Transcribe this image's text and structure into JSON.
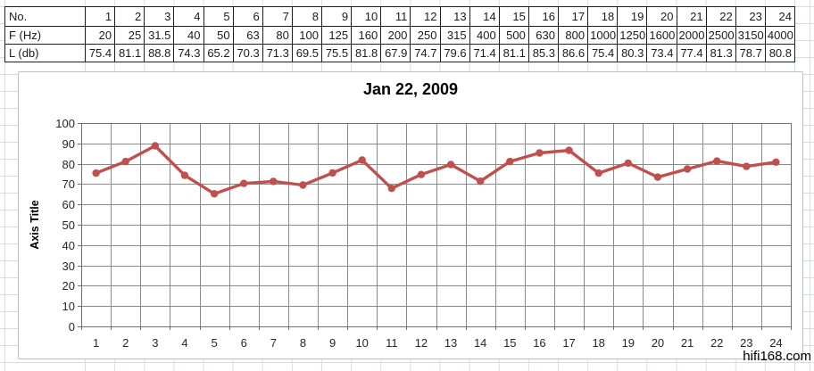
{
  "table": {
    "rows": [
      {
        "label": "No.",
        "values": [
          "1",
          "2",
          "3",
          "4",
          "5",
          "6",
          "7",
          "8",
          "9",
          "10",
          "11",
          "12",
          "13",
          "14",
          "15",
          "16",
          "17",
          "18",
          "19",
          "20",
          "21",
          "22",
          "23",
          "24"
        ]
      },
      {
        "label": "F (Hz)",
        "values": [
          "20",
          "25",
          "31.5",
          "40",
          "50",
          "63",
          "80",
          "100",
          "125",
          "160",
          "200",
          "250",
          "315",
          "400",
          "500",
          "630",
          "800",
          "1000",
          "1250",
          "1600",
          "2000",
          "2500",
          "3150",
          "4000"
        ]
      },
      {
        "label": "L (db)",
        "values": [
          "75.4",
          "81.1",
          "88.8",
          "74.3",
          "65.2",
          "70.3",
          "71.3",
          "69.5",
          "75.5",
          "81.8",
          "67.9",
          "74.7",
          "79.6",
          "71.4",
          "81.1",
          "85.3",
          "86.6",
          "75.4",
          "80.3",
          "73.4",
          "77.4",
          "81.3",
          "78.7",
          "80.8"
        ]
      }
    ]
  },
  "chart": {
    "title": "Jan 22, 2009"
  },
  "chart_data": {
    "type": "line",
    "title": "Jan 22, 2009",
    "xlabel": "",
    "ylabel": "Axis Title",
    "categories": [
      1,
      2,
      3,
      4,
      5,
      6,
      7,
      8,
      9,
      10,
      11,
      12,
      13,
      14,
      15,
      16,
      17,
      18,
      19,
      20,
      21,
      22,
      23,
      24
    ],
    "values": [
      75.4,
      81.1,
      88.8,
      74.3,
      65.2,
      70.3,
      71.3,
      69.5,
      75.5,
      81.8,
      67.9,
      74.7,
      79.6,
      71.4,
      81.1,
      85.3,
      86.6,
      75.4,
      80.3,
      73.4,
      77.4,
      81.3,
      78.7,
      80.8
    ],
    "ylim": [
      0,
      100
    ],
    "ytick_step": 10,
    "grid": "both",
    "legend": "none",
    "series_color": "#C0504D"
  },
  "watermark": "hifi168.com",
  "colors": {
    "series": "#C0504D",
    "plot_gridline": "#8a8a8a",
    "plot_frame": "#707070",
    "sheet_gridline": "#d7dde8",
    "table_border": "#1f1f1f",
    "chart_border": "#c0c0c0",
    "label_text": "#262626"
  }
}
